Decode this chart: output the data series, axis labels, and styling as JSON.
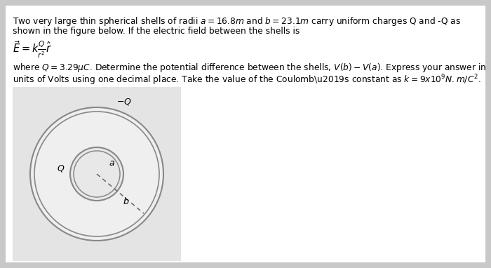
{
  "page_bg": "#c8c8c8",
  "content_bg": "#ffffff",
  "fig_area_bg": "#e0e0e0",
  "circle_color": "#888888",
  "dashed_color": "#666666",
  "text_color": "#000000",
  "line1": "Two very large thin spherical shells of radii $a = 16.8m$ and $b = 23.1m$ carry uniform charges Q and -Q as",
  "line2": "shown in the figure below. If the electric field between the shells is",
  "eq": "$\\vec{E} = k\\frac{Q}{r^2}\\hat{r}$",
  "line4": "where $Q = 3.29\\mu C$. Determine the potential difference between the shells, $V(b) - V(a)$. Express your answer in",
  "line5": "units of Volts using one decimal place. Take the value of the Coulomb\\u2019s constant as $k = 9x10^9 N. m/C^2$.",
  "fs": 8.8,
  "fs_eq": 10.5
}
